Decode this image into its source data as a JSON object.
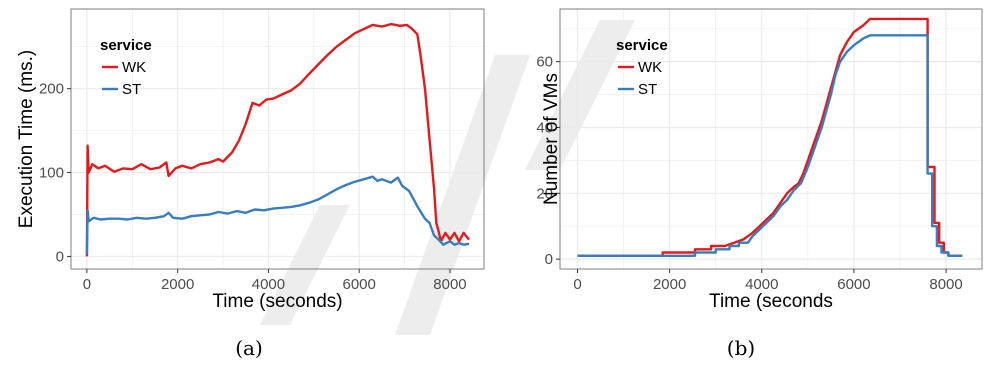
{
  "colors": {
    "WK": "#e31a1c",
    "ST": "#3a7dbf",
    "grid": "#ebebeb",
    "frame": "#7f7f7f",
    "watermark": "#ededed"
  },
  "legend": {
    "title": "service"
  },
  "panels": [
    {
      "label": "(a)"
    },
    {
      "label": "(b)"
    }
  ],
  "chart_data": [
    {
      "type": "line",
      "xlabel": "Time (seconds)",
      "ylabel": "Execution Time (ms.)",
      "xlim": [
        -350,
        8750
      ],
      "ylim": [
        -15,
        295
      ],
      "xticks": [
        0,
        2000,
        4000,
        6000,
        8000
      ],
      "yticks": [
        0,
        100,
        200
      ],
      "grid": true,
      "legend_position": "top-left",
      "series": [
        {
          "name": "WK",
          "points": [
            [
              0,
              0
            ],
            [
              15,
              132
            ],
            [
              40,
              100
            ],
            [
              120,
              110
            ],
            [
              250,
              105
            ],
            [
              400,
              108
            ],
            [
              600,
              101
            ],
            [
              800,
              105
            ],
            [
              1000,
              104
            ],
            [
              1200,
              110
            ],
            [
              1400,
              104
            ],
            [
              1600,
              106
            ],
            [
              1750,
              112
            ],
            [
              1800,
              96
            ],
            [
              1950,
              105
            ],
            [
              2100,
              108
            ],
            [
              2300,
              105
            ],
            [
              2500,
              110
            ],
            [
              2700,
              112
            ],
            [
              2900,
              116
            ],
            [
              3000,
              113
            ],
            [
              3200,
              124
            ],
            [
              3350,
              138
            ],
            [
              3500,
              158
            ],
            [
              3650,
              183
            ],
            [
              3800,
              180
            ],
            [
              3950,
              187
            ],
            [
              4100,
              188
            ],
            [
              4300,
              193
            ],
            [
              4500,
              198
            ],
            [
              4700,
              206
            ],
            [
              4900,
              218
            ],
            [
              5100,
              229
            ],
            [
              5300,
              240
            ],
            [
              5500,
              250
            ],
            [
              5700,
              258
            ],
            [
              5900,
              266
            ],
            [
              6100,
              271
            ],
            [
              6300,
              276
            ],
            [
              6500,
              274
            ],
            [
              6700,
              277
            ],
            [
              6900,
              275
            ],
            [
              7050,
              276
            ],
            [
              7150,
              272
            ],
            [
              7280,
              265
            ],
            [
              7350,
              240
            ],
            [
              7450,
              200
            ],
            [
              7550,
              140
            ],
            [
              7650,
              80
            ],
            [
              7700,
              40
            ],
            [
              7750,
              30
            ],
            [
              7800,
              18
            ],
            [
              7900,
              28
            ],
            [
              8000,
              20
            ],
            [
              8100,
              28
            ],
            [
              8200,
              18
            ],
            [
              8300,
              28
            ],
            [
              8420,
              20
            ]
          ]
        },
        {
          "name": "ST",
          "points": [
            [
              0,
              2
            ],
            [
              15,
              55
            ],
            [
              40,
              42
            ],
            [
              150,
              46
            ],
            [
              300,
              44
            ],
            [
              500,
              45
            ],
            [
              700,
              45
            ],
            [
              900,
              44
            ],
            [
              1100,
              46
            ],
            [
              1300,
              45
            ],
            [
              1500,
              46
            ],
            [
              1700,
              48
            ],
            [
              1800,
              52
            ],
            [
              1900,
              46
            ],
            [
              2100,
              45
            ],
            [
              2300,
              48
            ],
            [
              2500,
              49
            ],
            [
              2700,
              50
            ],
            [
              2900,
              53
            ],
            [
              3100,
              51
            ],
            [
              3300,
              54
            ],
            [
              3500,
              52
            ],
            [
              3700,
              56
            ],
            [
              3900,
              55
            ],
            [
              4100,
              57
            ],
            [
              4300,
              58
            ],
            [
              4500,
              59
            ],
            [
              4700,
              61
            ],
            [
              4900,
              64
            ],
            [
              5100,
              68
            ],
            [
              5300,
              74
            ],
            [
              5500,
              80
            ],
            [
              5700,
              85
            ],
            [
              5900,
              89
            ],
            [
              6100,
              92
            ],
            [
              6300,
              95
            ],
            [
              6400,
              90
            ],
            [
              6500,
              92
            ],
            [
              6700,
              88
            ],
            [
              6850,
              94
            ],
            [
              6950,
              84
            ],
            [
              7100,
              78
            ],
            [
              7200,
              68
            ],
            [
              7300,
              58
            ],
            [
              7450,
              45
            ],
            [
              7550,
              40
            ],
            [
              7650,
              25
            ],
            [
              7750,
              20
            ],
            [
              7850,
              14
            ],
            [
              8000,
              18
            ],
            [
              8100,
              14
            ],
            [
              8200,
              16
            ],
            [
              8300,
              14
            ],
            [
              8420,
              15
            ]
          ]
        }
      ]
    },
    {
      "type": "line",
      "xlabel": "Time (seconds",
      "ylabel": "Number of VMs",
      "xlim": [
        -380,
        8780
      ],
      "ylim": [
        -3,
        76
      ],
      "xticks": [
        0,
        2000,
        4000,
        6000,
        8000
      ],
      "yticks": [
        0,
        20,
        40,
        60
      ],
      "grid": true,
      "legend_position": "top-left",
      "series": [
        {
          "name": "WK",
          "points": [
            [
              0,
              1
            ],
            [
              1850,
              1
            ],
            [
              1850,
              2
            ],
            [
              2550,
              2
            ],
            [
              2550,
              3
            ],
            [
              2900,
              3
            ],
            [
              2900,
              4
            ],
            [
              3200,
              4
            ],
            [
              3400,
              5
            ],
            [
              3600,
              6
            ],
            [
              3800,
              8
            ],
            [
              3950,
              10
            ],
            [
              4100,
              12
            ],
            [
              4250,
              14
            ],
            [
              4400,
              17
            ],
            [
              4550,
              20
            ],
            [
              4700,
              22
            ],
            [
              4800,
              23
            ],
            [
              4900,
              26
            ],
            [
              5000,
              30
            ],
            [
              5100,
              34
            ],
            [
              5200,
              38
            ],
            [
              5300,
              42
            ],
            [
              5400,
              47
            ],
            [
              5500,
              52
            ],
            [
              5600,
              57
            ],
            [
              5700,
              62
            ],
            [
              5850,
              66
            ],
            [
              6000,
              69
            ],
            [
              6200,
              71
            ],
            [
              6350,
              73
            ],
            [
              7600,
              73
            ],
            [
              7600,
              28
            ],
            [
              7750,
              28
            ],
            [
              7750,
              11
            ],
            [
              7850,
              11
            ],
            [
              7850,
              5
            ],
            [
              7950,
              5
            ],
            [
              7950,
              2
            ],
            [
              8050,
              2
            ],
            [
              8050,
              1
            ],
            [
              8350,
              1
            ]
          ]
        },
        {
          "name": "ST",
          "points": [
            [
              0,
              1
            ],
            [
              2550,
              1
            ],
            [
              2550,
              2
            ],
            [
              3000,
              2
            ],
            [
              3000,
              3
            ],
            [
              3300,
              3
            ],
            [
              3300,
              4
            ],
            [
              3500,
              4
            ],
            [
              3500,
              5
            ],
            [
              3700,
              5
            ],
            [
              3800,
              7
            ],
            [
              3950,
              9
            ],
            [
              4100,
              11
            ],
            [
              4250,
              13
            ],
            [
              4400,
              16
            ],
            [
              4550,
              18
            ],
            [
              4700,
              21
            ],
            [
              4850,
              23
            ],
            [
              5000,
              28
            ],
            [
              5100,
              32
            ],
            [
              5200,
              36
            ],
            [
              5300,
              40
            ],
            [
              5400,
              45
            ],
            [
              5500,
              50
            ],
            [
              5600,
              56
            ],
            [
              5700,
              60
            ],
            [
              5850,
              63
            ],
            [
              6000,
              65
            ],
            [
              6200,
              67
            ],
            [
              6350,
              68
            ],
            [
              7600,
              68
            ],
            [
              7600,
              26
            ],
            [
              7700,
              26
            ],
            [
              7700,
              10
            ],
            [
              7800,
              10
            ],
            [
              7800,
              4
            ],
            [
              7900,
              4
            ],
            [
              7900,
              2
            ],
            [
              8050,
              2
            ],
            [
              8050,
              1
            ],
            [
              8350,
              1
            ]
          ]
        }
      ]
    }
  ]
}
